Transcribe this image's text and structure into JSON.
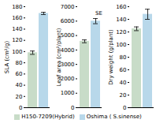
{
  "chart_data": [
    {
      "type": "bar",
      "ylabel": "SLA (cm²/g)",
      "categories": [
        null
      ],
      "series": [
        {
          "name": "H150-7209(Hybrid)",
          "color": "#c8dcc8",
          "values": [
            98
          ],
          "errors": [
            3
          ]
        },
        {
          "name": "Oshima ( S.sinense)",
          "color": "#b8d8ea",
          "values": [
            168
          ],
          "errors": [
            2
          ]
        }
      ],
      "ylim": [
        0,
        180
      ],
      "yticks": [
        0,
        20,
        40,
        60,
        80,
        100,
        120,
        140,
        160,
        180
      ]
    },
    {
      "type": "bar",
      "ylabel": "Leaf area (cm²/plant)",
      "categories": [
        null
      ],
      "series": [
        {
          "name": "H150-7209(Hybrid)",
          "color": "#c8dcc8",
          "values": [
            4600
          ],
          "errors": [
            100
          ]
        },
        {
          "name": "Oshima ( S.sinense)",
          "color": "#b8d8ea",
          "values": [
            6000
          ],
          "errors": [
            180
          ]
        }
      ],
      "ylim": [
        0,
        7000
      ],
      "yticks": [
        0,
        1000,
        2000,
        3000,
        4000,
        5000,
        6000,
        7000
      ],
      "annotation": "SE"
    },
    {
      "type": "bar",
      "ylabel": "Dry weight (g/plant)",
      "categories": [
        null
      ],
      "series": [
        {
          "name": "H150-7209(Hybrid)",
          "color": "#c8dcc8",
          "values": [
            125
          ],
          "errors": [
            3
          ]
        },
        {
          "name": "Oshima ( S.sinense)",
          "color": "#b8d8ea",
          "values": [
            148
          ],
          "errors": [
            8
          ]
        }
      ],
      "ylim": [
        0,
        160
      ],
      "yticks": [
        0,
        20,
        40,
        60,
        80,
        100,
        120,
        140,
        160
      ],
      "legend": "bottom"
    }
  ]
}
